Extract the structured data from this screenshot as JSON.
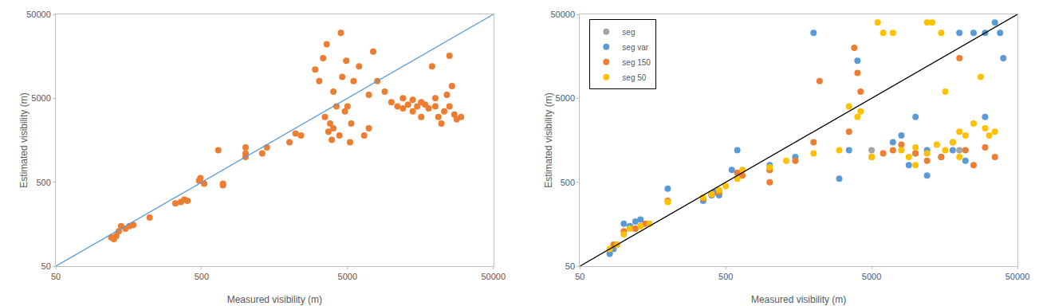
{
  "chart_data": [
    {
      "type": "scatter",
      "xlabel": "Measured visibility (m)",
      "ylabel": "Estimated visibility (m)",
      "log": true,
      "grid": false,
      "xlim": [
        50,
        50000
      ],
      "ylim": [
        50,
        50000
      ],
      "xticks": [
        50,
        500,
        5000,
        50000
      ],
      "yticks": [
        50,
        500,
        5000,
        50000
      ],
      "series": [
        {
          "color": "#ed7d31",
          "marker": "circle",
          "x": [
            120,
            125,
            130,
            135,
            140,
            150,
            160,
            170,
            220,
            330,
            360,
            380,
            400,
            480,
            490,
            520,
            650,
            700,
            700,
            1000,
            1000,
            1000,
            1300,
            1400,
            2000,
            2200,
            2400,
            3000,
            3200,
            3400,
            3600,
            3800,
            3500,
            3700,
            3900,
            4000,
            4000,
            4200,
            4500,
            4400,
            4600,
            4800,
            4900,
            5000,
            5200,
            5300,
            5500,
            6000,
            6500,
            7000,
            7000,
            7500,
            8000,
            9000,
            10000,
            11000,
            12000,
            13000,
            14000,
            15000,
            16000,
            17000,
            18000,
            19000,
            20000,
            20000,
            21000,
            22000,
            23000,
            24000,
            25000,
            25000,
            26000,
            27000,
            28000,
            30000,
            12000,
            14000,
            16000
          ],
          "values": [
            110,
            105,
            115,
            130,
            150,
            140,
            150,
            155,
            190,
            280,
            290,
            310,
            300,
            520,
            560,
            480,
            1200,
            460,
            480,
            1000,
            1300,
            1100,
            1100,
            1300,
            1500,
            1900,
            1800,
            11000,
            8000,
            15000,
            22000,
            2500,
            3000,
            2000,
            1600,
            2200,
            6000,
            4000,
            30000,
            1800,
            9000,
            3500,
            14000,
            4000,
            1500,
            2500,
            8000,
            12000,
            1800,
            2200,
            5500,
            18000,
            8000,
            6000,
            4500,
            4000,
            3800,
            4200,
            3500,
            4000,
            4500,
            4200,
            3800,
            12000,
            4000,
            5000,
            3000,
            2500,
            3500,
            5500,
            16000,
            4000,
            7000,
            3200,
            2800,
            3000,
            5000,
            4800,
            3000
          ]
        },
        {
          "type": "line",
          "color": "#5b9bd5",
          "x": [
            50,
            50000
          ],
          "values": [
            50,
            50000
          ]
        }
      ]
    },
    {
      "type": "scatter",
      "xlabel": "Measured visibility (m)",
      "ylabel": "Estimated visibility (m)",
      "log": true,
      "grid": false,
      "legend": "top left",
      "xlim": [
        50,
        50000
      ],
      "ylim": [
        50,
        50000
      ],
      "xticks": [
        50,
        500,
        5000,
        50000
      ],
      "yticks": [
        50,
        500,
        5000,
        50000
      ],
      "series": [
        {
          "name": "seg",
          "color": "#a5a5a5",
          "marker": "circle",
          "x": [
            90,
            120,
            400,
            1000,
            5000,
            10000,
            20000
          ],
          "values": [
            90,
            140,
            350,
            700,
            1200,
            1100,
            1200
          ]
        },
        {
          "name": "seg var",
          "color": "#5b9bd5",
          "marker": "circle",
          "x": [
            80,
            85,
            100,
            110,
            120,
            130,
            200,
            350,
            400,
            420,
            450,
            600,
            550,
            1000,
            1500,
            2000,
            3000,
            3500,
            4000,
            7000,
            8000,
            9000,
            10000,
            12000,
            15000,
            18000,
            20000,
            25000,
            30000,
            35000,
            38000,
            40000,
            30000,
            12000,
            22000
          ],
          "values": [
            70,
            80,
            160,
            150,
            170,
            180,
            420,
            300,
            350,
            380,
            350,
            1200,
            700,
            800,
            1000,
            30000,
            550,
            1200,
            14000,
            1500,
            1800,
            800,
            3000,
            1200,
            1000,
            1200,
            30000,
            30000,
            30000,
            40000,
            30000,
            15000,
            3000,
            600,
            900
          ]
        },
        {
          "name": "seg 150",
          "color": "#ed7d31",
          "marker": "circle",
          "x": [
            85,
            100,
            120,
            140,
            200,
            350,
            400,
            450,
            600,
            650,
            1000,
            1000,
            1500,
            2000,
            2200,
            3500,
            3800,
            4000,
            4200,
            5000,
            6000,
            7000,
            8000,
            10000,
            12000,
            15000,
            18000,
            20000,
            22000,
            25000,
            30000,
            35000
          ],
          "values": [
            90,
            130,
            140,
            160,
            300,
            320,
            360,
            380,
            650,
            600,
            700,
            500,
            900,
            1500,
            8000,
            2000,
            20000,
            10000,
            6000,
            1000,
            1100,
            1200,
            1400,
            1100,
            900,
            1000,
            1500,
            15000,
            1200,
            800,
            1300,
            1000
          ]
        },
        {
          "name": "seg 50",
          "color": "#ffc000",
          "marker": "circle",
          "x": [
            80,
            90,
            100,
            110,
            130,
            150,
            200,
            350,
            400,
            450,
            500,
            600,
            650,
            1000,
            1300,
            2000,
            3000,
            3500,
            4000,
            4200,
            5000,
            5500,
            6000,
            7000,
            8000,
            9000,
            10000,
            12000,
            13000,
            15000,
            16000,
            18000,
            20000,
            22000,
            25000,
            28000,
            30000,
            32000,
            35000,
            12000,
            14000,
            16000,
            20000,
            10000
          ],
          "values": [
            80,
            90,
            120,
            140,
            150,
            160,
            290,
            330,
            360,
            400,
            450,
            550,
            700,
            750,
            900,
            1100,
            1200,
            4000,
            3000,
            3500,
            1000,
            40000,
            30000,
            30000,
            1200,
            1000,
            1300,
            40000,
            40000,
            30000,
            6000,
            1500,
            2000,
            1800,
            2500,
            9000,
            2200,
            1800,
            2000,
            1100,
            1400,
            1200,
            1000,
            800
          ]
        },
        {
          "type": "line",
          "color": "#000000",
          "x": [
            50,
            50000
          ],
          "values": [
            50,
            50000
          ]
        }
      ]
    }
  ]
}
